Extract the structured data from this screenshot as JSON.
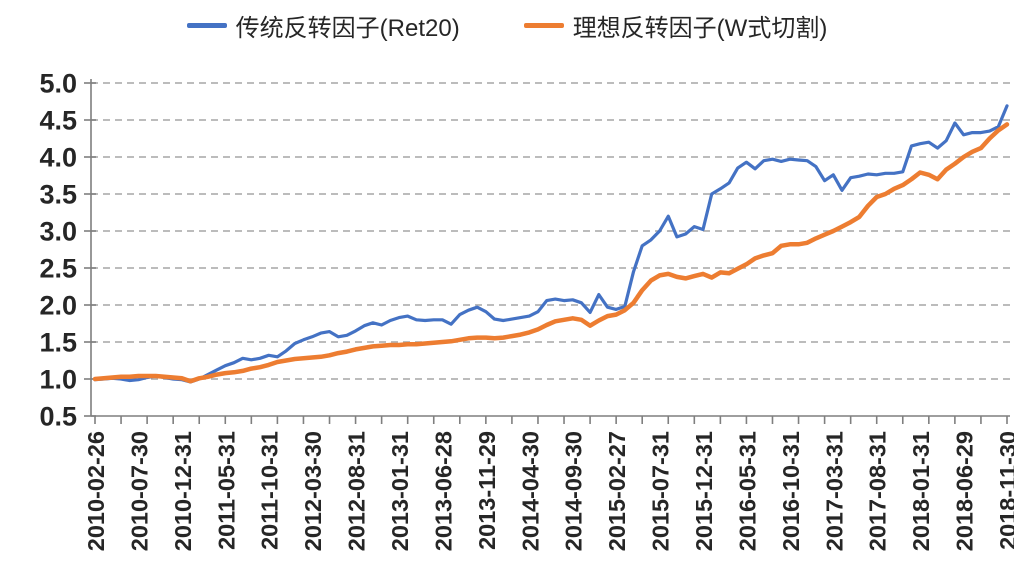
{
  "colors": {
    "background": "#ffffff",
    "axis_line": "#7f7f7f",
    "gridline": "#a6a6a6",
    "tick_text": "#262626",
    "series_blue": "#4472c4",
    "series_orange": "#ed7d31"
  },
  "chart_data": {
    "type": "line",
    "title": "",
    "xlabel": "",
    "ylabel": "",
    "ylim": [
      0.5,
      5.0
    ],
    "grid": "horizontal-dashed",
    "legend_position": "top-center",
    "x_label_interval": 5,
    "x_tick_mark_interval": 3,
    "y_tick_labels": [
      "0.5",
      "1.0",
      "1.5",
      "2.0",
      "2.5",
      "3.0",
      "3.5",
      "4.0",
      "4.5",
      "5.0"
    ],
    "x": [
      "2010-02-26",
      "2010-03-31",
      "2010-04-30",
      "2010-05-31",
      "2010-06-30",
      "2010-07-30",
      "2010-08-31",
      "2010-09-30",
      "2010-10-29",
      "2010-11-30",
      "2010-12-31",
      "2011-01-31",
      "2011-02-28",
      "2011-03-31",
      "2011-04-29",
      "2011-05-31",
      "2011-06-30",
      "2011-07-29",
      "2011-08-31",
      "2011-09-30",
      "2011-10-31",
      "2011-11-30",
      "2011-12-30",
      "2012-01-31",
      "2012-02-29",
      "2012-03-30",
      "2012-04-27",
      "2012-05-31",
      "2012-06-29",
      "2012-07-31",
      "2012-08-31",
      "2012-09-28",
      "2012-10-31",
      "2012-11-30",
      "2012-12-31",
      "2013-01-31",
      "2013-02-28",
      "2013-03-29",
      "2013-04-26",
      "2013-05-31",
      "2013-06-28",
      "2013-07-31",
      "2013-08-30",
      "2013-09-30",
      "2013-10-31",
      "2013-11-29",
      "2013-12-31",
      "2014-01-30",
      "2014-02-28",
      "2014-03-31",
      "2014-04-30",
      "2014-05-30",
      "2014-06-30",
      "2014-07-31",
      "2014-08-29",
      "2014-09-30",
      "2014-10-31",
      "2014-11-28",
      "2014-12-31",
      "2015-01-30",
      "2015-02-27",
      "2015-03-31",
      "2015-04-30",
      "2015-05-29",
      "2015-06-30",
      "2015-07-31",
      "2015-08-31",
      "2015-09-30",
      "2015-10-30",
      "2015-11-30",
      "2015-12-31",
      "2016-01-29",
      "2016-02-29",
      "2016-03-31",
      "2016-04-29",
      "2016-05-31",
      "2016-06-30",
      "2016-07-29",
      "2016-08-31",
      "2016-09-30",
      "2016-10-31",
      "2016-11-30",
      "2016-12-30",
      "2017-01-26",
      "2017-02-28",
      "2017-03-31",
      "2017-04-28",
      "2017-05-31",
      "2017-06-30",
      "2017-07-31",
      "2017-08-31",
      "2017-09-29",
      "2017-10-31",
      "2017-11-30",
      "2017-12-29",
      "2018-01-31",
      "2018-02-28",
      "2018-03-30",
      "2018-04-27",
      "2018-05-31",
      "2018-06-29",
      "2018-07-31",
      "2018-08-31",
      "2018-09-28",
      "2018-10-31",
      "2018-11-30"
    ],
    "x_tick_labels_shown": [
      "2010-02-26",
      "2010-07-30",
      "2010-12-31",
      "2011-05-31",
      "2011-10-31",
      "2012-03-30",
      "2012-08-31",
      "2013-01-31",
      "2013-06-28",
      "2013-11-29",
      "2014-04-30",
      "2014-09-30",
      "2015-02-27",
      "2015-07-31",
      "2015-12-31",
      "2016-05-31",
      "2016-10-31",
      "2017-03-31",
      "2017-08-31",
      "2018-01-31",
      "2018-06-29",
      "2018-11-30"
    ],
    "series": [
      {
        "name": "传统反转因子(Ret20)",
        "color": "#4472c4",
        "stroke_width": 3.2,
        "values": [
          0.99,
          1.0,
          1.01,
          1.0,
          0.98,
          0.99,
          1.02,
          1.04,
          1.02,
          1.0,
          0.99,
          0.96,
          1.0,
          1.06,
          1.12,
          1.18,
          1.22,
          1.28,
          1.26,
          1.28,
          1.32,
          1.3,
          1.38,
          1.48,
          1.53,
          1.57,
          1.62,
          1.64,
          1.57,
          1.59,
          1.65,
          1.72,
          1.76,
          1.73,
          1.79,
          1.83,
          1.85,
          1.8,
          1.79,
          1.8,
          1.8,
          1.74,
          1.87,
          1.93,
          1.97,
          1.91,
          1.81,
          1.79,
          1.81,
          1.83,
          1.85,
          1.91,
          2.06,
          2.08,
          2.06,
          2.07,
          2.03,
          1.9,
          2.14,
          1.97,
          1.94,
          1.98,
          2.45,
          2.8,
          2.88,
          3.0,
          3.2,
          2.92,
          2.96,
          3.06,
          3.02,
          3.5,
          3.57,
          3.65,
          3.85,
          3.93,
          3.84,
          3.95,
          3.97,
          3.94,
          3.97,
          3.96,
          3.95,
          3.87,
          3.68,
          3.76,
          3.55,
          3.72,
          3.74,
          3.77,
          3.76,
          3.78,
          3.78,
          3.8,
          4.15,
          4.18,
          4.2,
          4.12,
          4.22,
          4.46,
          4.3,
          4.33,
          4.33,
          4.35,
          4.41,
          4.69
        ]
      },
      {
        "name": "理想反转因子(W式切割)",
        "color": "#ed7d31",
        "stroke_width": 4.5,
        "values": [
          1.0,
          1.01,
          1.02,
          1.03,
          1.03,
          1.04,
          1.04,
          1.04,
          1.03,
          1.02,
          1.01,
          0.97,
          1.01,
          1.03,
          1.06,
          1.08,
          1.09,
          1.11,
          1.14,
          1.16,
          1.19,
          1.23,
          1.25,
          1.27,
          1.28,
          1.29,
          1.3,
          1.32,
          1.35,
          1.37,
          1.4,
          1.42,
          1.44,
          1.45,
          1.46,
          1.46,
          1.47,
          1.47,
          1.48,
          1.49,
          1.5,
          1.51,
          1.53,
          1.55,
          1.56,
          1.56,
          1.55,
          1.56,
          1.58,
          1.6,
          1.63,
          1.67,
          1.73,
          1.78,
          1.8,
          1.82,
          1.8,
          1.72,
          1.79,
          1.85,
          1.87,
          1.93,
          2.03,
          2.2,
          2.33,
          2.4,
          2.42,
          2.38,
          2.36,
          2.39,
          2.42,
          2.37,
          2.44,
          2.43,
          2.49,
          2.55,
          2.63,
          2.67,
          2.7,
          2.8,
          2.82,
          2.82,
          2.84,
          2.9,
          2.95,
          3.0,
          3.06,
          3.12,
          3.19,
          3.34,
          3.46,
          3.5,
          3.57,
          3.62,
          3.7,
          3.79,
          3.76,
          3.7,
          3.83,
          3.91,
          4.0,
          4.07,
          4.12,
          4.25,
          4.36,
          4.44
        ]
      }
    ]
  }
}
